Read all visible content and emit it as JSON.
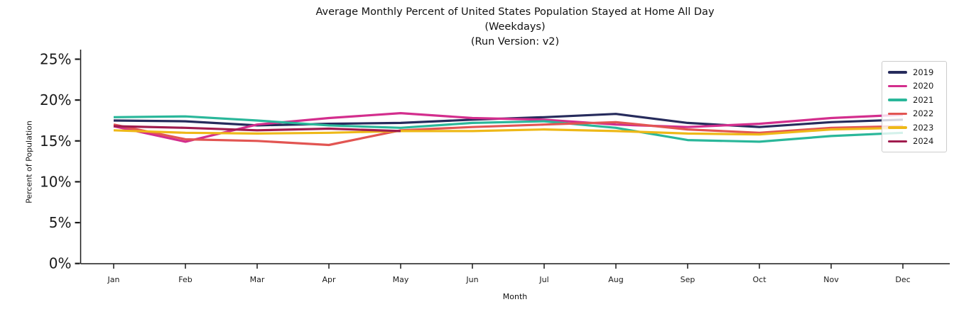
{
  "title": {
    "lines": [
      "Average Monthly Percent of United States Population Stayed at Home All Day",
      "(Weekdays)",
      "(Run Version: v2)"
    ]
  },
  "chart_data": {
    "type": "line",
    "title": "Average Monthly Percent of United States Population Stayed at Home All Day (Weekdays) (Run Version: v2)",
    "xlabel": "Month",
    "ylabel": "Percent of Population",
    "categories": [
      "Jan",
      "Feb",
      "Mar",
      "Apr",
      "May",
      "Jun",
      "Jul",
      "Aug",
      "Sep",
      "Oct",
      "Nov",
      "Dec"
    ],
    "y_tick_labels": [
      "0%",
      "5%",
      "10%",
      "15%",
      "20%",
      "25%"
    ],
    "y_tick_values": [
      0,
      5,
      10,
      15,
      20,
      25
    ],
    "ylim": [
      0,
      26
    ],
    "grid": false,
    "legend_position": "upper right",
    "series": [
      {
        "name": "2019",
        "color": "#262b5c",
        "values": [
          17.5,
          17.4,
          16.9,
          17.1,
          17.2,
          17.6,
          17.9,
          18.3,
          17.2,
          16.7,
          17.3,
          17.6
        ]
      },
      {
        "name": "2020",
        "color": "#d32e8d",
        "values": [
          16.8,
          14.9,
          17.0,
          17.8,
          18.4,
          17.8,
          17.6,
          17.0,
          16.7,
          17.1,
          17.8,
          18.2
        ]
      },
      {
        "name": "2021",
        "color": "#2ab79a",
        "values": [
          17.9,
          18.0,
          17.5,
          16.9,
          16.6,
          17.2,
          17.4,
          16.6,
          15.1,
          14.9,
          15.6,
          16.0
        ]
      },
      {
        "name": "2022",
        "color": "#e25552",
        "values": [
          17.0,
          15.2,
          15.0,
          14.5,
          16.3,
          16.7,
          17.0,
          17.3,
          16.4,
          16.0,
          16.6,
          16.8
        ]
      },
      {
        "name": "2023",
        "color": "#eeb818",
        "values": [
          16.3,
          16.0,
          15.9,
          16.0,
          16.2,
          16.2,
          16.4,
          16.2,
          15.9,
          15.8,
          16.4,
          16.6
        ]
      },
      {
        "name": "2024",
        "color": "#a01c4e",
        "values": [
          16.8,
          16.6,
          16.3,
          16.5,
          16.2,
          null,
          null,
          null,
          null,
          null,
          null,
          null
        ]
      }
    ]
  },
  "layout_hints": {
    "axis_color": "#1a1a1a",
    "tick_label_color": "#1a1a1a"
  }
}
